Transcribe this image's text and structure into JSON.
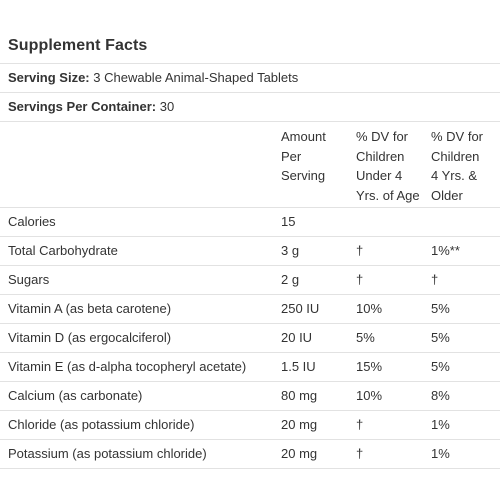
{
  "title": "Supplement Facts",
  "serving_size": {
    "label": "Serving Size:",
    "value": "3 Chewable Animal-Shaped Tablets"
  },
  "servings_per_container": {
    "label": "Servings Per Container:",
    "value": "30"
  },
  "headers": {
    "amount": [
      "Amount",
      "Per",
      "Serving"
    ],
    "dv_under4": [
      "% DV for",
      "Children",
      "Under 4",
      "Yrs. of Age"
    ],
    "dv_4_older": [
      "% DV for",
      "Children",
      "4 Yrs. &",
      "Older"
    ]
  },
  "rows": [
    {
      "name": "Calories",
      "amount": "15",
      "dv_under4": "",
      "dv_4_older": ""
    },
    {
      "name": "Total Carbohydrate",
      "amount": "3 g",
      "dv_under4": "†",
      "dv_4_older": "1%**"
    },
    {
      "name": "Sugars",
      "amount": "2 g",
      "dv_under4": "†",
      "dv_4_older": "†"
    },
    {
      "name": "Vitamin A (as beta carotene)",
      "amount": "250 IU",
      "dv_under4": "10%",
      "dv_4_older": "5%"
    },
    {
      "name": "Vitamin D (as ergocalciferol)",
      "amount": "20 IU",
      "dv_under4": "5%",
      "dv_4_older": "5%"
    },
    {
      "name": "Vitamin E (as d-alpha tocopheryl acetate)",
      "amount": "1.5 IU",
      "dv_under4": "15%",
      "dv_4_older": "5%"
    },
    {
      "name": "Calcium (as carbonate)",
      "amount": "80 mg",
      "dv_under4": "10%",
      "dv_4_older": "8%"
    },
    {
      "name": "Chloride (as potassium chloride)",
      "amount": "20 mg",
      "dv_under4": "†",
      "dv_4_older": "1%"
    },
    {
      "name": "Potassium (as potassium chloride)",
      "amount": "20 mg",
      "dv_under4": "†",
      "dv_4_older": "1%"
    }
  ]
}
